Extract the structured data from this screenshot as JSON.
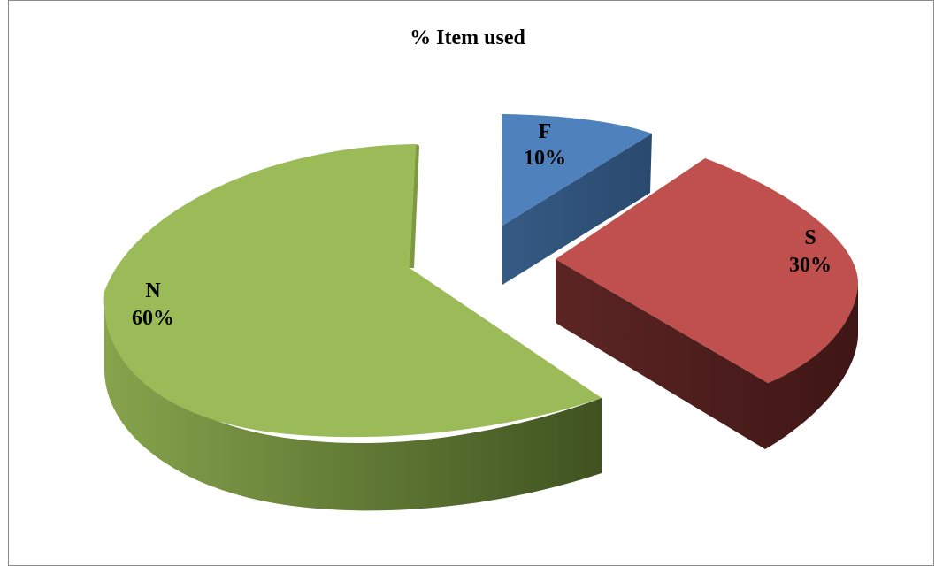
{
  "chart_data": {
    "type": "pie",
    "title": "% Item used",
    "slices": [
      {
        "key": "F",
        "label": "F",
        "value": 10,
        "value_label": "10%",
        "color": "#4f81bd",
        "side_color": "#2f5378"
      },
      {
        "key": "S",
        "label": "S",
        "value": 30,
        "value_label": "30%",
        "color": "#c0504d",
        "side_color": "#4e1e1e"
      },
      {
        "key": "N",
        "label": "N",
        "value": 60,
        "value_label": "60%",
        "color": "#9bbb59",
        "side_color": "#4a6128"
      }
    ],
    "style": "3d-exploded"
  }
}
